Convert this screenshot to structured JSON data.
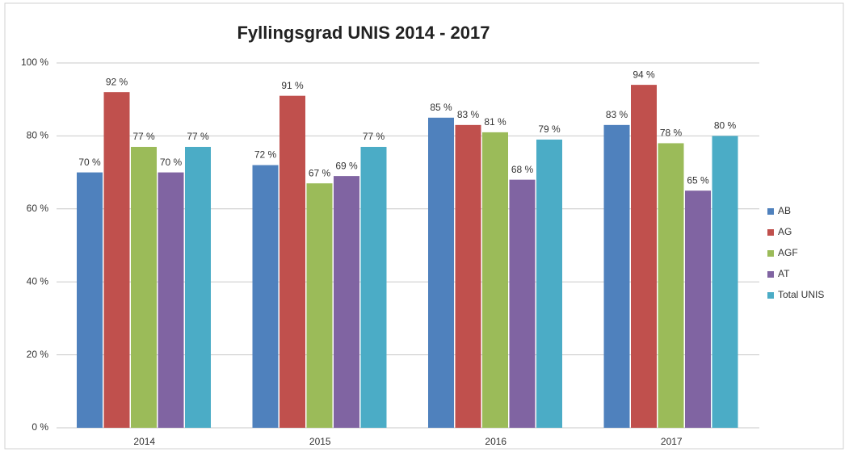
{
  "chart_data": {
    "type": "bar",
    "title": "Fyllingsgrad UNIS 2014 - 2017",
    "categories": [
      "2014",
      "2015",
      "2016",
      "2017"
    ],
    "series": [
      {
        "name": "AB",
        "color": "#4f81bd",
        "values": [
          70,
          72,
          85,
          83
        ],
        "value_labels": [
          "70 %",
          "72 %",
          "85 %",
          "83 %"
        ]
      },
      {
        "name": "AG",
        "color": "#c0504d",
        "values": [
          92,
          91,
          83,
          94
        ],
        "value_labels": [
          "92 %",
          "91 %",
          "83 %",
          "94 %"
        ]
      },
      {
        "name": "AGF",
        "color": "#9bbb59",
        "values": [
          77,
          67,
          81,
          78
        ],
        "value_labels": [
          "77 %",
          "67 %",
          "81 %",
          "78 %"
        ]
      },
      {
        "name": "AT",
        "color": "#8064a2",
        "values": [
          70,
          69,
          68,
          65
        ],
        "value_labels": [
          "70 %",
          "69 %",
          "68 %",
          "65 %"
        ]
      },
      {
        "name": "Total UNIS",
        "color": "#4bacc6",
        "values": [
          77,
          77,
          79,
          80
        ],
        "value_labels": [
          "77 %",
          "77 %",
          "79 %",
          "80 %"
        ]
      }
    ],
    "ylim": [
      0,
      100
    ],
    "yticks": [
      {
        "value": 0,
        "label": "0 %"
      },
      {
        "value": 20,
        "label": "20 %"
      },
      {
        "value": 40,
        "label": "40 %"
      },
      {
        "value": 60,
        "label": "60 %"
      },
      {
        "value": 80,
        "label": "80 %"
      },
      {
        "value": 100,
        "label": "100 %"
      }
    ],
    "grid": true,
    "legend": "right"
  }
}
